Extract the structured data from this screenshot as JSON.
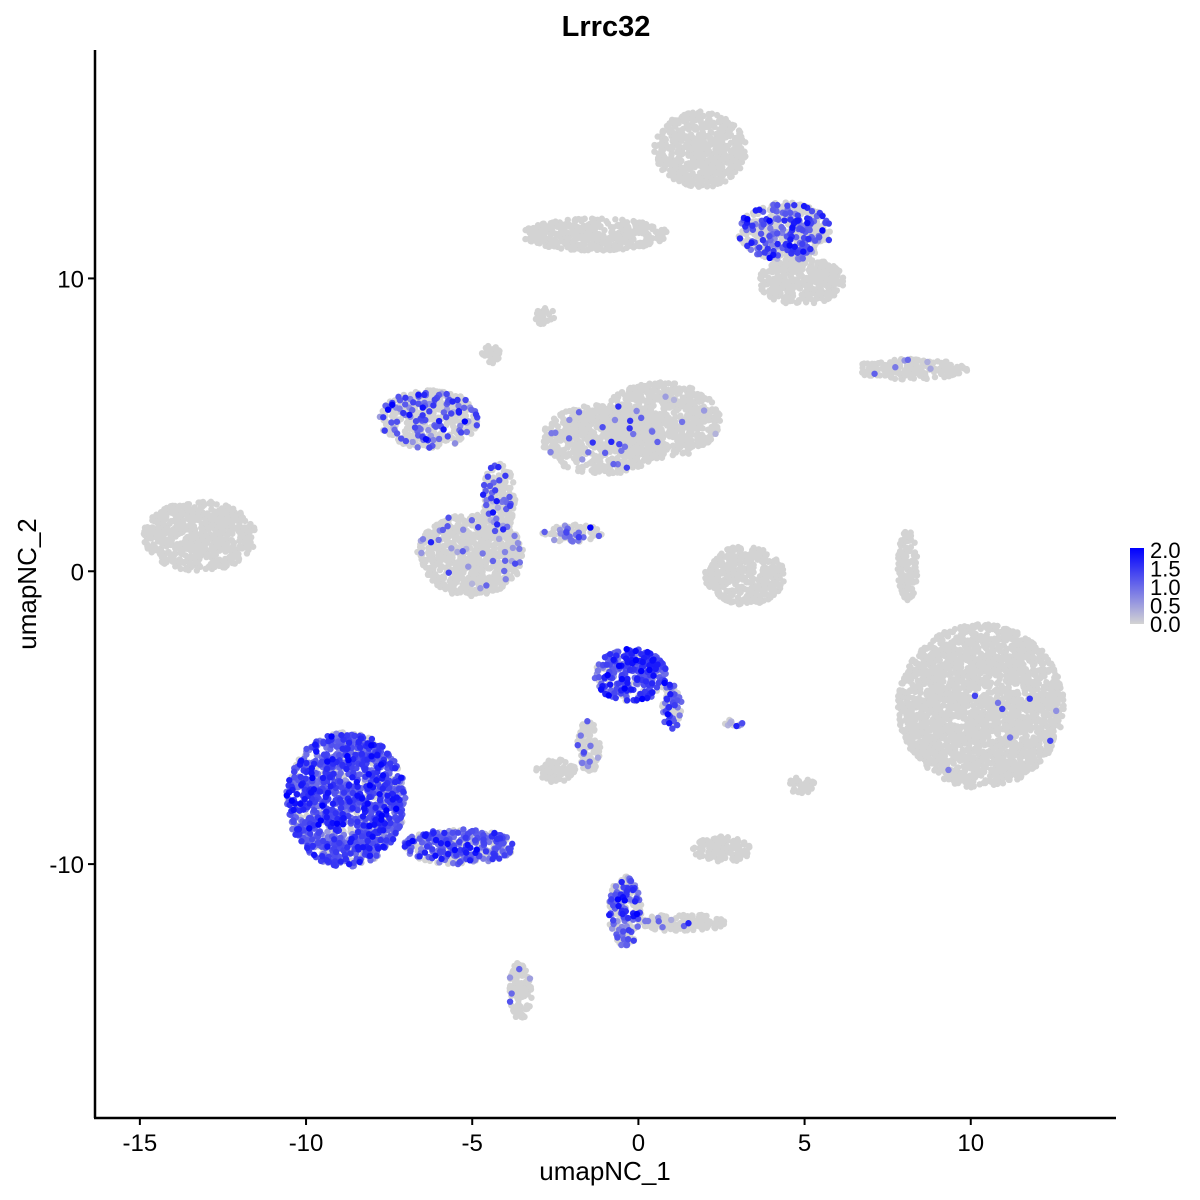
{
  "chart_data": {
    "type": "scatter",
    "title": "Lrrc32",
    "xlabel": "umapNC_1",
    "ylabel": "umapNC_2",
    "xlim": [
      -16.35,
      14.37
    ],
    "ylim": [
      -18.67,
      17.8
    ],
    "xticks": [
      -15,
      -10,
      -5,
      0,
      5,
      10
    ],
    "yticks": [
      -10,
      0,
      10
    ],
    "grid": false,
    "color_scale": {
      "low": "#D3D3D3",
      "high": "#0000FF",
      "min": 0,
      "max": 2.0,
      "ticks": [
        "2.0",
        "1.5",
        "1.0",
        "0.5",
        "0.0"
      ],
      "legend_position": "right"
    },
    "clusters": [
      {
        "center": [
          1.87,
          14.4
        ],
        "spread": [
          1.4,
          1.3
        ],
        "expressing_fraction": 0.0,
        "mean_expression": 0
      },
      {
        "center": [
          -1.3,
          11.5
        ],
        "spread": [
          2.2,
          0.55
        ],
        "expressing_fraction": 0.0,
        "mean_expression": 0
      },
      {
        "center": [
          4.4,
          11.6
        ],
        "spread": [
          1.4,
          1.0
        ],
        "expressing_fraction": 0.35,
        "mean_expression": 1.2
      },
      {
        "center": [
          4.9,
          9.9
        ],
        "spread": [
          1.3,
          0.8
        ],
        "expressing_fraction": 0.0,
        "mean_expression": 0
      },
      {
        "center": [
          -2.8,
          8.7
        ],
        "spread": [
          0.3,
          0.3
        ],
        "expressing_fraction": 0.0,
        "mean_expression": 0
      },
      {
        "center": [
          -4.45,
          7.4
        ],
        "spread": [
          0.3,
          0.3
        ],
        "expressing_fraction": 0.0,
        "mean_expression": 0
      },
      {
        "center": [
          -6.3,
          5.2
        ],
        "spread": [
          1.5,
          1.0
        ],
        "expressing_fraction": 0.25,
        "mean_expression": 1.1
      },
      {
        "center": [
          -1.1,
          4.5
        ],
        "spread": [
          1.8,
          1.2
        ],
        "expressing_fraction": 0.04,
        "mean_expression": 0.9
      },
      {
        "center": [
          0.66,
          5.15
        ],
        "spread": [
          1.8,
          1.3
        ],
        "expressing_fraction": 0.01,
        "mean_expression": 0.8
      },
      {
        "center": [
          -4.2,
          2.4
        ],
        "spread": [
          0.5,
          1.3
        ],
        "expressing_fraction": 0.15,
        "mean_expression": 1.0
      },
      {
        "center": [
          -5.06,
          0.55
        ],
        "spread": [
          1.6,
          1.4
        ],
        "expressing_fraction": 0.06,
        "mean_expression": 0.9
      },
      {
        "center": [
          -2.0,
          1.3
        ],
        "spread": [
          0.9,
          0.3
        ],
        "expressing_fraction": 0.2,
        "mean_expression": 1.0
      },
      {
        "center": [
          -13.2,
          1.2
        ],
        "spread": [
          1.7,
          1.2
        ],
        "expressing_fraction": 0.0,
        "mean_expression": 0
      },
      {
        "center": [
          3.2,
          -0.15
        ],
        "spread": [
          1.2,
          1.0
        ],
        "expressing_fraction": 0.0,
        "mean_expression": 0
      },
      {
        "center": [
          8.2,
          6.9
        ],
        "spread": [
          1.7,
          0.35
        ],
        "expressing_fraction": 0.02,
        "mean_expression": 0.8
      },
      {
        "center": [
          8.1,
          0.2
        ],
        "spread": [
          0.3,
          1.2
        ],
        "expressing_fraction": 0.0,
        "mean_expression": 0
      },
      {
        "center": [
          10.3,
          -4.6
        ],
        "spread": [
          2.5,
          2.8
        ],
        "expressing_fraction": 0.003,
        "mean_expression": 0.9
      },
      {
        "center": [
          -0.24,
          -3.55
        ],
        "spread": [
          1.1,
          0.9
        ],
        "expressing_fraction": 0.75,
        "mean_expression": 1.3
      },
      {
        "center": [
          1.0,
          -4.6
        ],
        "spread": [
          0.3,
          0.8
        ],
        "expressing_fraction": 0.5,
        "mean_expression": 1.1
      },
      {
        "center": [
          -1.5,
          -6.0
        ],
        "spread": [
          0.35,
          0.9
        ],
        "expressing_fraction": 0.1,
        "mean_expression": 0.8
      },
      {
        "center": [
          -2.5,
          -6.8
        ],
        "spread": [
          0.6,
          0.4
        ],
        "expressing_fraction": 0.0,
        "mean_expression": 0
      },
      {
        "center": [
          -8.8,
          -7.8
        ],
        "spread": [
          1.8,
          2.3
        ],
        "expressing_fraction": 0.8,
        "mean_expression": 1.2
      },
      {
        "center": [
          -5.4,
          -9.4
        ],
        "spread": [
          1.7,
          0.6
        ],
        "expressing_fraction": 0.65,
        "mean_expression": 1.1
      },
      {
        "center": [
          2.5,
          -9.5
        ],
        "spread": [
          0.9,
          0.45
        ],
        "expressing_fraction": 0.0,
        "mean_expression": 0
      },
      {
        "center": [
          -3.55,
          -14.3
        ],
        "spread": [
          0.35,
          1.0
        ],
        "expressing_fraction": 0.05,
        "mean_expression": 0.9
      },
      {
        "center": [
          -0.4,
          -11.6
        ],
        "spread": [
          0.5,
          1.2
        ],
        "expressing_fraction": 0.5,
        "mean_expression": 1.1
      },
      {
        "center": [
          1.3,
          -12.0
        ],
        "spread": [
          1.3,
          0.3
        ],
        "expressing_fraction": 0.1,
        "mean_expression": 0.9
      },
      {
        "center": [
          4.9,
          -7.3
        ],
        "spread": [
          0.4,
          0.3
        ],
        "expressing_fraction": 0.0,
        "mean_expression": 0
      },
      {
        "center": [
          2.9,
          -5.2
        ],
        "spread": [
          0.3,
          0.15
        ],
        "expressing_fraction": 0.3,
        "mean_expression": 0.9
      }
    ]
  }
}
